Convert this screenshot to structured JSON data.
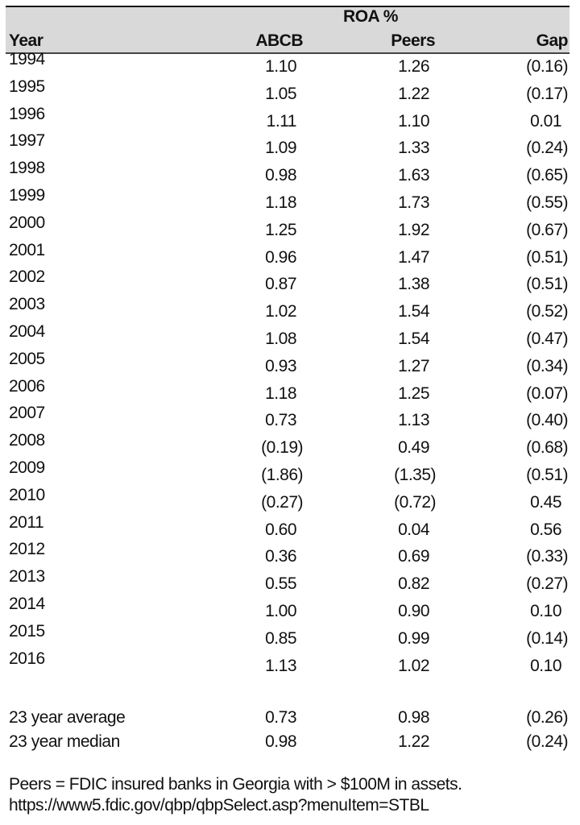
{
  "table": {
    "group_header": "ROA %",
    "columns": [
      "Year",
      "ABCB",
      "Peers",
      "Gap"
    ],
    "rows": [
      [
        "1994",
        "1.10",
        "1.26",
        "(0.16)"
      ],
      [
        "1995",
        "1.05",
        "1.22",
        "(0.17)"
      ],
      [
        "1996",
        "1.11",
        "1.10",
        "0.01"
      ],
      [
        "1997",
        "1.09",
        "1.33",
        "(0.24)"
      ],
      [
        "1998",
        "0.98",
        "1.63",
        "(0.65)"
      ],
      [
        "1999",
        "1.18",
        "1.73",
        "(0.55)"
      ],
      [
        "2000",
        "1.25",
        "1.92",
        "(0.67)"
      ],
      [
        "2001",
        "0.96",
        "1.47",
        "(0.51)"
      ],
      [
        "2002",
        "0.87",
        "1.38",
        "(0.51)"
      ],
      [
        "2003",
        "1.02",
        "1.54",
        "(0.52)"
      ],
      [
        "2004",
        "1.08",
        "1.54",
        "(0.47)"
      ],
      [
        "2005",
        "0.93",
        "1.27",
        "(0.34)"
      ],
      [
        "2006",
        "1.18",
        "1.25",
        "(0.07)"
      ],
      [
        "2007",
        "0.73",
        "1.13",
        "(0.40)"
      ],
      [
        "2008",
        "(0.19)",
        "0.49",
        "(0.68)"
      ],
      [
        "2009",
        "(1.86)",
        "(1.35)",
        "(0.51)"
      ],
      [
        "2010",
        "(0.27)",
        "(0.72)",
        "0.45"
      ],
      [
        "2011",
        "0.60",
        "0.04",
        "0.56"
      ],
      [
        "2012",
        "0.36",
        "0.69",
        "(0.33)"
      ],
      [
        "2013",
        "0.55",
        "0.82",
        "(0.27)"
      ],
      [
        "2014",
        "1.00",
        "0.90",
        "0.10"
      ],
      [
        "2015",
        "0.85",
        "0.99",
        "(0.14)"
      ],
      [
        "2016",
        "1.13",
        "1.02",
        "0.10"
      ]
    ],
    "summary": [
      [
        "23 year average",
        "0.73",
        "0.98",
        "(0.26)"
      ],
      [
        "23 year median",
        "0.98",
        "1.22",
        "(0.24)"
      ]
    ]
  },
  "footnote": {
    "line1": "Peers = FDIC insured banks in Georgia with > $100M in assets.",
    "line2": "https://www5.fdic.gov/qbp/qbpSelect.asp?menuItem=STBL"
  }
}
